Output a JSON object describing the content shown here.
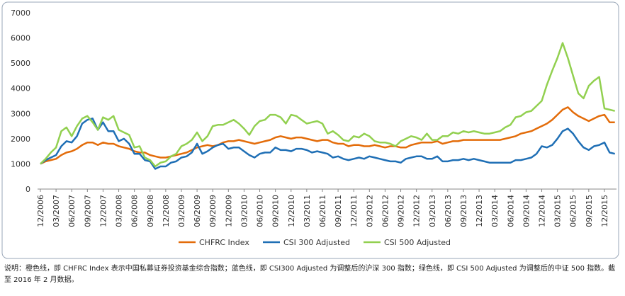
{
  "chart_data": {
    "type": "line",
    "categories": [
      "12/2006",
      null,
      null,
      "03/2007",
      null,
      null,
      "06/2007",
      null,
      null,
      "09/2007",
      null,
      null,
      "12/2007",
      null,
      null,
      "03/2008",
      null,
      null,
      "06/2008",
      null,
      null,
      "09/2008",
      null,
      null,
      "12/2008",
      null,
      null,
      "03/2009",
      null,
      null,
      "06/2009",
      null,
      null,
      "09/2009",
      null,
      null,
      "12/2009",
      null,
      null,
      "03/2010",
      null,
      null,
      "06/2010",
      null,
      null,
      "09/2010",
      null,
      null,
      "12/2010",
      null,
      null,
      "03/2011",
      null,
      null,
      "06/2011",
      null,
      null,
      "09/2011",
      null,
      null,
      "12/2011",
      null,
      null,
      "03/2012",
      null,
      null,
      "06/2012",
      null,
      null,
      "09/2012",
      null,
      null,
      "12/2012",
      null,
      null,
      "03/2013",
      null,
      null,
      "06/2013",
      null,
      null,
      "09/2013",
      null,
      null,
      "12/2013",
      null,
      null,
      "03/2014",
      null,
      null,
      "06/2014",
      null,
      null,
      "09/2014",
      null,
      null,
      "12/2014",
      null,
      null,
      "03/2015",
      null,
      null,
      "06/2015",
      null,
      null,
      "09/2015",
      null,
      null,
      "12/2015",
      null,
      null
    ],
    "series": [
      {
        "name": "CHFRC Index",
        "color": "#e36c0a",
        "values": [
          1000,
          1100,
          1150,
          1200,
          1350,
          1450,
          1500,
          1600,
          1750,
          1850,
          1850,
          1750,
          1850,
          1800,
          1800,
          1700,
          1650,
          1600,
          1500,
          1450,
          1450,
          1350,
          1300,
          1250,
          1250,
          1300,
          1350,
          1400,
          1450,
          1550,
          1650,
          1700,
          1750,
          1700,
          1750,
          1850,
          1900,
          1900,
          1950,
          1900,
          1850,
          1800,
          1850,
          1900,
          1950,
          2050,
          2100,
          2050,
          2000,
          2050,
          2050,
          2000,
          1950,
          1900,
          1950,
          1950,
          1850,
          1800,
          1800,
          1700,
          1750,
          1750,
          1700,
          1700,
          1750,
          1700,
          1650,
          1700,
          1700,
          1650,
          1650,
          1750,
          1800,
          1850,
          1850,
          1850,
          1900,
          1800,
          1850,
          1900,
          1900,
          1950,
          1950,
          1950,
          1950,
          1950,
          1950,
          1950,
          1950,
          2000,
          2050,
          2100,
          2200,
          2250,
          2300,
          2400,
          2500,
          2600,
          2750,
          2950,
          3150,
          3250,
          3050,
          2900,
          2800,
          2700,
          2800,
          2900,
          2950,
          2650,
          2650
        ]
      },
      {
        "name": "CSI 300 Adjusted",
        "color": "#1f6fb5",
        "values": [
          1000,
          1150,
          1250,
          1350,
          1700,
          1900,
          1850,
          2100,
          2600,
          2750,
          2800,
          2350,
          2650,
          2300,
          2300,
          1900,
          2000,
          1800,
          1400,
          1400,
          1150,
          1100,
          800,
          900,
          900,
          1050,
          1100,
          1250,
          1300,
          1450,
          1800,
          1400,
          1500,
          1650,
          1750,
          1800,
          1600,
          1650,
          1650,
          1500,
          1350,
          1250,
          1400,
          1450,
          1450,
          1650,
          1550,
          1550,
          1500,
          1600,
          1600,
          1550,
          1450,
          1500,
          1450,
          1400,
          1250,
          1300,
          1200,
          1150,
          1200,
          1250,
          1200,
          1300,
          1250,
          1200,
          1150,
          1100,
          1100,
          1050,
          1200,
          1250,
          1300,
          1300,
          1200,
          1200,
          1300,
          1100,
          1100,
          1150,
          1150,
          1200,
          1150,
          1200,
          1150,
          1100,
          1050,
          1050,
          1050,
          1050,
          1050,
          1150,
          1150,
          1200,
          1250,
          1400,
          1700,
          1650,
          1750,
          2000,
          2300,
          2400,
          2200,
          1900,
          1650,
          1550,
          1700,
          1750,
          1850,
          1450,
          1400
        ]
      },
      {
        "name": "CSI 500 Adjusted",
        "color": "#92d050",
        "values": [
          1000,
          1200,
          1450,
          1650,
          2300,
          2450,
          2100,
          2500,
          2800,
          2900,
          2650,
          2350,
          2850,
          2750,
          2900,
          2350,
          2250,
          2150,
          1650,
          1700,
          1250,
          1150,
          900,
          1050,
          1100,
          1300,
          1400,
          1700,
          1800,
          1950,
          2250,
          1900,
          2100,
          2500,
          2550,
          2550,
          2650,
          2750,
          2600,
          2400,
          2150,
          2500,
          2700,
          2750,
          2950,
          2950,
          2850,
          2600,
          2950,
          2900,
          2750,
          2600,
          2650,
          2700,
          2600,
          2200,
          2300,
          2150,
          1950,
          1900,
          2100,
          2050,
          2200,
          2100,
          1900,
          1850,
          1850,
          1800,
          1700,
          1900,
          2000,
          2100,
          2050,
          1950,
          2200,
          1950,
          1950,
          2100,
          2100,
          2250,
          2200,
          2300,
          2250,
          2300,
          2250,
          2200,
          2200,
          2250,
          2300,
          2450,
          2550,
          2850,
          2900,
          3050,
          3100,
          3300,
          3500,
          4150,
          4700,
          5200,
          5800,
          5200,
          4500,
          3800,
          3600,
          4100,
          4300,
          4450,
          3200,
          3150,
          3100
        ]
      }
    ],
    "ylim": [
      0,
      7000
    ],
    "yticks": [
      0,
      1000,
      2000,
      3000,
      4000,
      5000,
      6000,
      7000
    ],
    "grid": false,
    "legend": "bottom",
    "note": "说明：橙色线，即 CHFRC Index 表示中国私募证券投资基金综合指数；蓝色线，即 CSI300 Adjusted 为调整后的沪深 300 指数；绿色线，即 CSI 500 Adjusted 为调整后的中证 500 指数。截至 2016 年 2 月数据。"
  }
}
